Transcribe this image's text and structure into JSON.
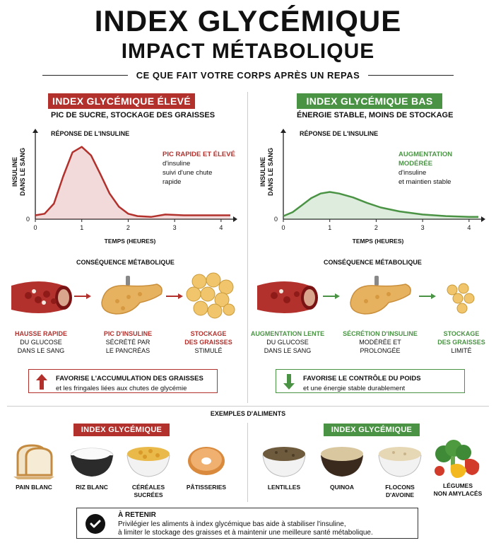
{
  "header": {
    "title": "INDEX GLYCÉMIQUE",
    "subtitle": "IMPACT MÉTABOLIQUE",
    "tagline": "CE QUE FAIT VOTRE CORPS APRÈS UN REPAS"
  },
  "colors": {
    "high": "#b3312d",
    "low": "#4a9344"
  },
  "high": {
    "badge": "INDEX GLYCÉMIQUE ÉLEVÉ",
    "tagline": "PIC DE SUCRE, STOCKAGE DES GRAISSES",
    "chart_title": "RÉPONSE DE L'INSULINE",
    "ylabel_line1": "INSULINE",
    "ylabel_line2": "DANS LE SANG",
    "xlabel": "TEMPS (HEURES)",
    "annotation_bold_1": "PIC RAPIDE ET ÉLEVÉ",
    "annotation_1": "d'insuline",
    "annotation_2": "suivi d'une chute",
    "annotation_3": "rapide",
    "consequence_title": "CONSÉQUENCE MÉTABOLIQUE",
    "steps": [
      {
        "h": "HAUSSE RAPIDE",
        "l1": "DU GLUCOSE",
        "l2": "DANS LE SANG"
      },
      {
        "h": "PIC D'INSULINE",
        "l1": "SÉCRÉTÉ PAR",
        "l2": "LE PANCRÉAS"
      },
      {
        "h": "STOCKAGE",
        "l1": "DES GRAISSES",
        "l2": "STIMULÉ"
      }
    ],
    "effect_title": "FAVORISE L'ACCUMULATION DES GRAISSES",
    "effect_text": "et les fringales liées aux chutes de glycémie"
  },
  "low": {
    "badge": "INDEX GLYCÉMIQUE BAS",
    "tagline": "ÉNERGIE STABLE, MOINS DE STOCKAGE",
    "chart_title": "RÉPONSE DE L'INSULINE",
    "ylabel_line1": "INSULINE",
    "ylabel_line2": "DANS LE SANG",
    "xlabel": "TEMPS (HEURES)",
    "annotation_bold_1": "AUGMENTATION",
    "annotation_bold_2": "MODÉRÉE",
    "annotation_1": "d'insuline",
    "annotation_2": "et maintien stable",
    "consequence_title": "CONSÉQUENCE MÉTABOLIQUE",
    "steps": [
      {
        "h": "AUGMENTATION LENTE",
        "l1": "DU GLUCOSE",
        "l2": "DANS LE SANG"
      },
      {
        "h": "SÉCRÉTION D'INSULINE",
        "l1": "MODÉRÉE ET",
        "l2": "PROLONGÉE"
      },
      {
        "h": "STOCKAGE",
        "h2": "DES GRAISSES",
        "l1": "LIMITÉ"
      }
    ],
    "effect_title": "FAVORISE LE CONTRÔLE DU POIDS",
    "effect_text": "et une énergie stable durablement"
  },
  "foods": {
    "section_title": "EXEMPLES D'ALIMENTS",
    "high_badge": "INDEX GLYCÉMIQUE ÉLEVÉ",
    "low_badge": "INDEX GLYCÉMIQUE BAS",
    "high_items": [
      {
        "name": "PAIN BLANC",
        "icon": "bread-icon"
      },
      {
        "name": "RIZ BLANC",
        "icon": "rice-bowl-icon"
      },
      {
        "name": "CÉRÉALES SUCRÉES",
        "icon": "cereal-bowl-icon"
      },
      {
        "name": "PÂTISSERIES",
        "icon": "donut-icon"
      }
    ],
    "low_items": [
      {
        "name": "LENTILLES",
        "icon": "lentils-bowl-icon"
      },
      {
        "name": "QUINOA",
        "icon": "quinoa-bowl-icon"
      },
      {
        "name": "FLOCONS D'AVOINE",
        "icon": "oats-bowl-icon"
      },
      {
        "name": "LÉGUMES",
        "name2": "NON AMYLACÉS",
        "icon": "vegetables-icon"
      }
    ]
  },
  "retain": {
    "title": "À RETENIR",
    "line1": "Privilégier les aliments à index glycémique bas aide à stabiliser l'insuline,",
    "line2": "à limiter le stockage des graisses et à maintenir une meilleure santé métabolique."
  },
  "chart_data": [
    {
      "type": "area",
      "title": "RÉPONSE DE L'INSULINE",
      "xlabel": "TEMPS (HEURES)",
      "ylabel": "INSULINE DANS LE SANG",
      "xlim": [
        0,
        4.2
      ],
      "ylim": [
        0,
        1
      ],
      "x_ticks": [
        0,
        1,
        2,
        3,
        4
      ],
      "y_ticks": [
        0
      ],
      "color": "#b3312d",
      "series": [
        {
          "x": [
            0,
            0.2,
            0.4,
            0.6,
            0.8,
            1.0,
            1.2,
            1.4,
            1.6,
            1.8,
            2.0,
            2.2,
            2.5,
            2.8,
            3.2,
            3.6,
            4.0,
            4.2
          ],
          "y": [
            0.05,
            0.07,
            0.2,
            0.55,
            0.86,
            0.93,
            0.82,
            0.58,
            0.33,
            0.16,
            0.07,
            0.04,
            0.03,
            0.06,
            0.05,
            0.05,
            0.05,
            0.05
          ]
        }
      ]
    },
    {
      "type": "area",
      "title": "RÉPONSE DE L'INSULINE",
      "xlabel": "TEMPS (HEURES)",
      "ylabel": "INSULINE DANS LE SANG",
      "xlim": [
        0,
        4.2
      ],
      "ylim": [
        0,
        1
      ],
      "x_ticks": [
        0,
        1,
        2,
        3,
        4
      ],
      "y_ticks": [
        0
      ],
      "color": "#4a9344",
      "series": [
        {
          "x": [
            0,
            0.2,
            0.4,
            0.6,
            0.8,
            1.0,
            1.2,
            1.5,
            1.8,
            2.1,
            2.5,
            3.0,
            3.5,
            4.0,
            4.2
          ],
          "y": [
            0.04,
            0.09,
            0.18,
            0.27,
            0.33,
            0.35,
            0.33,
            0.28,
            0.21,
            0.15,
            0.1,
            0.06,
            0.04,
            0.03,
            0.03
          ]
        }
      ]
    }
  ]
}
